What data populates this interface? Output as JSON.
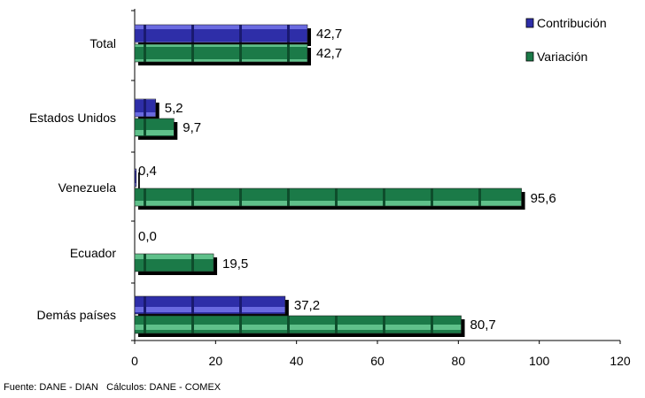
{
  "chart_data": {
    "type": "bar",
    "orientation": "horizontal",
    "categories": [
      "Total",
      "Estados Unidos",
      "Venezuela",
      "Ecuador",
      "Demás países"
    ],
    "series": [
      {
        "name": "Contribución",
        "values": [
          42.7,
          5.2,
          0.4,
          0.0,
          37.2
        ],
        "labels": [
          "42,7",
          "5,2",
          "0,4",
          "0,0",
          "37,2"
        ]
      },
      {
        "name": "Variación",
        "values": [
          42.7,
          9.7,
          95.6,
          19.5,
          80.7
        ],
        "labels": [
          "42,7",
          "9,7",
          "95,6",
          "19,5",
          "80,7"
        ]
      }
    ],
    "xlim": [
      0,
      120
    ],
    "xticks": [
      "0",
      "20",
      "40",
      "60",
      "80",
      "100",
      "120"
    ],
    "legend_placement": "top-right",
    "grid": false
  },
  "colors": {
    "contribucion": "#2e2ea8",
    "variacion": "#1b7a48",
    "shadow": "#000000"
  },
  "source_note": "Fuente: DANE - DIAN   Cálculos: DANE - COMEX"
}
